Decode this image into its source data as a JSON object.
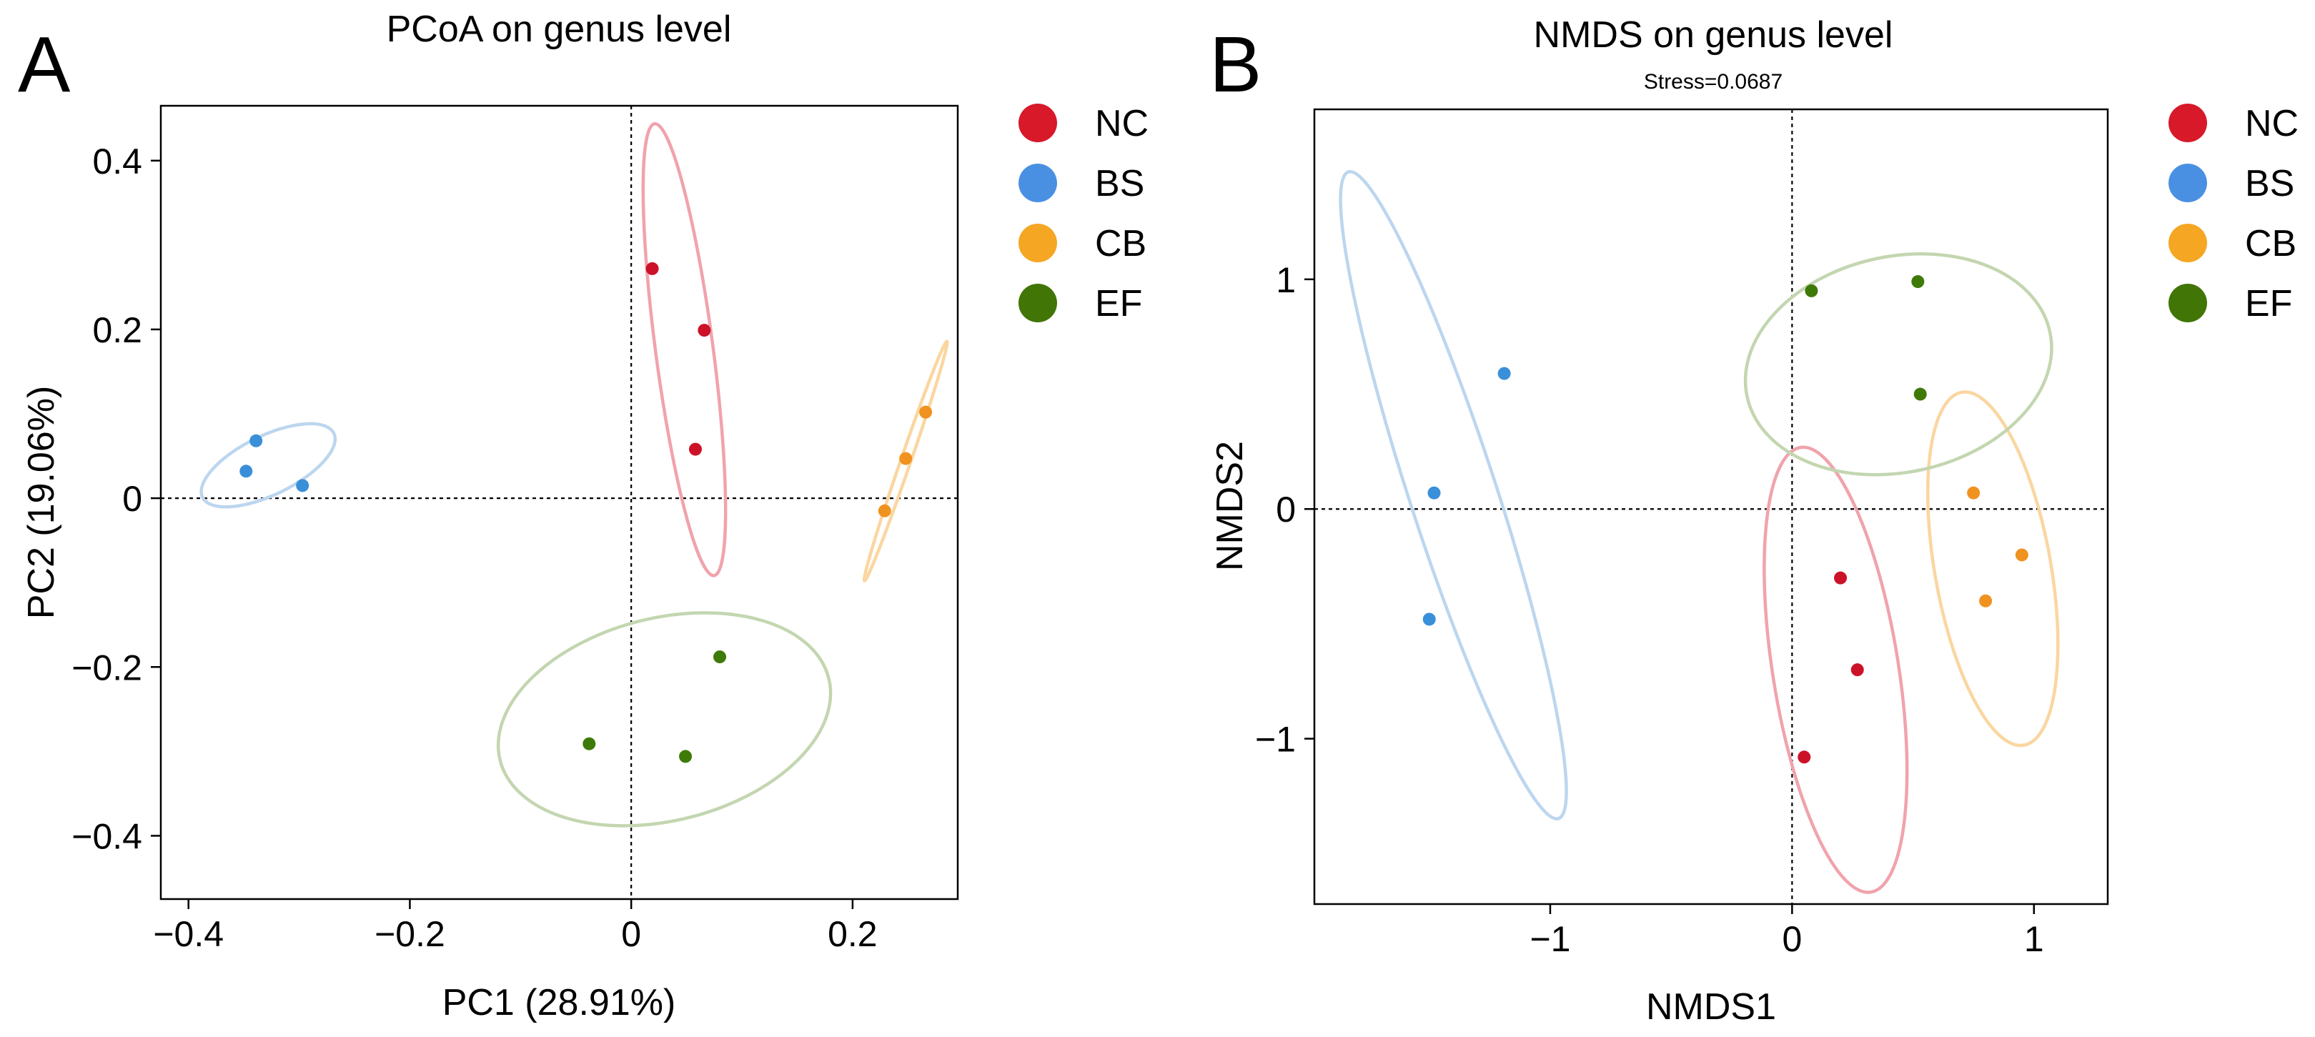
{
  "colors": {
    "NC": "#d7192a",
    "BS": "#4a90e2",
    "CB": "#f5a623",
    "EF": "#417505"
  },
  "chart_data": [
    {
      "type": "scatter",
      "panel_label": "A",
      "title": "PCoA on genus level",
      "subtitle": "",
      "xlabel": "PC1 (28.91%)",
      "ylabel": "PC2 (19.06%)",
      "xlim": [
        -0.425,
        0.295
      ],
      "ylim": [
        -0.475,
        0.465
      ],
      "xticks": [
        -0.4,
        -0.2,
        0,
        0.2
      ],
      "xtick_labels": [
        "−0.4",
        "−0.2",
        "0",
        "0.2"
      ],
      "yticks": [
        -0.4,
        -0.2,
        0,
        0.2,
        0.4
      ],
      "ytick_labels": [
        "−0.4",
        "−0.2",
        "0",
        "0.2",
        "0.4"
      ],
      "grid": false,
      "reference_lines": {
        "x": 0,
        "y": 0
      },
      "legend": [
        "NC",
        "BS",
        "CB",
        "EF"
      ],
      "legend_position": "right",
      "series": [
        {
          "name": "NC",
          "points": [
            [
              0.019,
              0.272
            ],
            [
              0.066,
              0.199
            ],
            [
              0.058,
              0.058
            ]
          ],
          "ellipse": {
            "cx": 0.048,
            "cy": 0.176,
            "rx": 0.026,
            "ry": 0.27,
            "angle_deg": -7.5
          }
        },
        {
          "name": "BS",
          "points": [
            [
              -0.339,
              0.068
            ],
            [
              -0.348,
              0.032
            ],
            [
              -0.297,
              0.015
            ]
          ],
          "ellipse": {
            "cx": -0.328,
            "cy": 0.039,
            "rx": 0.066,
            "ry": 0.035,
            "angle_deg": -26
          }
        },
        {
          "name": "CB",
          "points": [
            [
              0.266,
              0.102
            ],
            [
              0.248,
              0.047
            ],
            [
              0.229,
              -0.015
            ]
          ],
          "ellipse": {
            "cx": 0.248,
            "cy": 0.044,
            "rx": 0.0045,
            "ry": 0.15,
            "angle_deg": 19
          }
        },
        {
          "name": "EF",
          "points": [
            [
              0.08,
              -0.188
            ],
            [
              0.049,
              -0.306
            ],
            [
              -0.038,
              -0.291
            ]
          ],
          "ellipse": {
            "cx": 0.03,
            "cy": -0.262,
            "rx": 0.153,
            "ry": 0.12,
            "angle_deg": -14
          }
        }
      ]
    },
    {
      "type": "scatter",
      "panel_label": "B",
      "title": "NMDS on genus level",
      "subtitle": "Stress=0.0687",
      "xlabel": "NMDS1",
      "ylabel": "NMDS2",
      "xlim": [
        -1.975,
        1.305
      ],
      "ylim": [
        -1.72,
        1.74
      ],
      "xticks": [
        -1,
        0,
        1
      ],
      "xtick_labels": [
        "−1",
        "0",
        "1"
      ],
      "yticks": [
        -1,
        0,
        1
      ],
      "ytick_labels": [
        "−1",
        "0",
        "1"
      ],
      "grid": false,
      "reference_lines": {
        "x": 0,
        "y": 0
      },
      "legend": [
        "NC",
        "BS",
        "CB",
        "EF"
      ],
      "legend_position": "right",
      "series": [
        {
          "name": "NC",
          "points": [
            [
              0.2,
              -0.3
            ],
            [
              0.27,
              -0.7
            ],
            [
              0.05,
              -1.08
            ]
          ],
          "ellipse": {
            "cx": 0.18,
            "cy": -0.7,
            "rx": 0.26,
            "ry": 0.98,
            "angle_deg": -9
          }
        },
        {
          "name": "BS",
          "points": [
            [
              -1.19,
              0.59
            ],
            [
              -1.48,
              0.07
            ],
            [
              -1.5,
              -0.48
            ]
          ],
          "ellipse": {
            "cx": -1.4,
            "cy": 0.06,
            "rx": 0.18,
            "ry": 1.48,
            "angle_deg": -18
          }
        },
        {
          "name": "CB",
          "points": [
            [
              0.75,
              0.07
            ],
            [
              0.95,
              -0.2
            ],
            [
              0.8,
              -0.4
            ]
          ],
          "ellipse": {
            "cx": 0.83,
            "cy": -0.26,
            "rx": 0.24,
            "ry": 0.78,
            "angle_deg": -10
          }
        },
        {
          "name": "EF",
          "points": [
            [
              0.08,
              0.95
            ],
            [
              0.52,
              0.99
            ],
            [
              0.53,
              0.5
            ]
          ],
          "ellipse": {
            "cx": 0.44,
            "cy": 0.63,
            "rx": 0.64,
            "ry": 0.47,
            "angle_deg": -12
          }
        }
      ]
    }
  ]
}
